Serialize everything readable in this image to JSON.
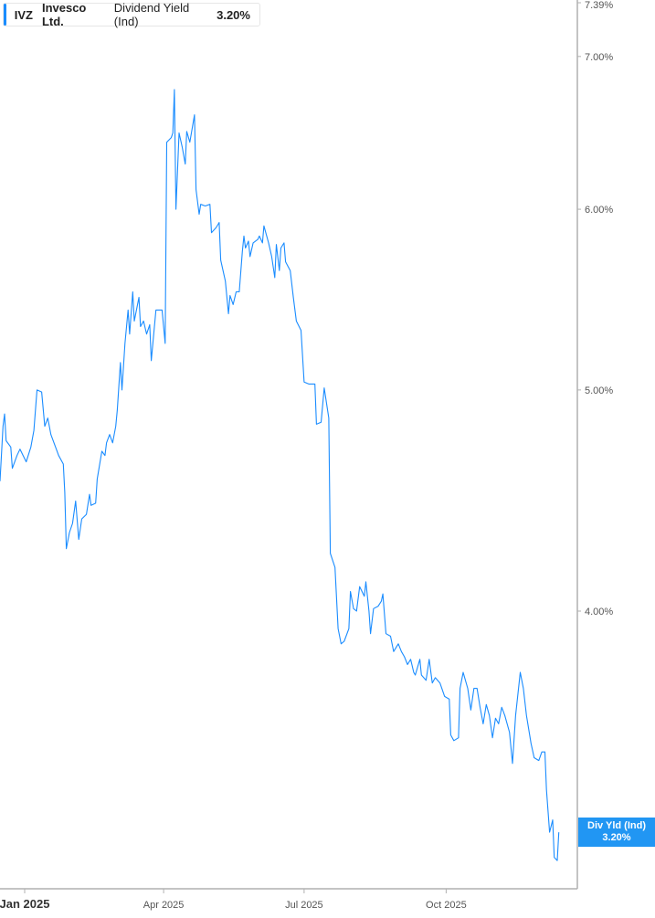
{
  "legend": {
    "ticker": "IVZ",
    "company": "Invesco Ltd.",
    "metric": "Dividend Yield (Ind)",
    "value": "3.20%"
  },
  "badge": {
    "label": "Div Yld (Ind)",
    "value": "3.20%"
  },
  "colors": {
    "line": "#1a8cff",
    "badge": "#2196f3",
    "axis": "#b0b0b0",
    "text": "#555555"
  },
  "chart_data": {
    "type": "line",
    "yscale": "log",
    "ylim": [
      3.0,
      7.39
    ],
    "y_ticks": [
      {
        "value": 7.39,
        "label": "7.39%"
      },
      {
        "value": 7.0,
        "label": "7.00%"
      },
      {
        "value": 6.0,
        "label": "6.00%"
      },
      {
        "value": 5.0,
        "label": "5.00%"
      },
      {
        "value": 4.0,
        "label": "4.00%"
      }
    ],
    "x_ticks": [
      {
        "date": "2025-01-01",
        "label": "Jan 2025",
        "major": true
      },
      {
        "date": "2025-04-01",
        "label": "Apr 2025"
      },
      {
        "date": "2025-07-01",
        "label": "Jul 2025"
      },
      {
        "date": "2025-10-01",
        "label": "Oct 2025"
      }
    ],
    "grid": false,
    "series": [
      {
        "name": "Dividend Yield (Ind)",
        "points": [
          [
            "2024-12-16",
            4.56
          ],
          [
            "2024-12-18",
            4.82
          ],
          [
            "2024-12-19",
            4.88
          ],
          [
            "2024-12-20",
            4.75
          ],
          [
            "2024-12-23",
            4.72
          ],
          [
            "2024-12-24",
            4.62
          ],
          [
            "2024-12-27",
            4.68
          ],
          [
            "2024-12-29",
            4.71
          ],
          [
            "2024-12-31",
            4.68
          ],
          [
            "2025-01-02",
            4.65
          ],
          [
            "2025-01-05",
            4.72
          ],
          [
            "2025-01-07",
            4.8
          ],
          [
            "2025-01-09",
            5.0
          ],
          [
            "2025-01-12",
            4.99
          ],
          [
            "2025-01-14",
            4.82
          ],
          [
            "2025-01-16",
            4.86
          ],
          [
            "2025-01-18",
            4.78
          ],
          [
            "2025-01-21",
            4.72
          ],
          [
            "2025-01-23",
            4.68
          ],
          [
            "2025-01-26",
            4.64
          ],
          [
            "2025-01-27",
            4.51
          ],
          [
            "2025-01-28",
            4.26
          ],
          [
            "2025-01-30",
            4.33
          ],
          [
            "2025-02-01",
            4.37
          ],
          [
            "2025-02-03",
            4.47
          ],
          [
            "2025-02-05",
            4.3
          ],
          [
            "2025-02-07",
            4.39
          ],
          [
            "2025-02-10",
            4.41
          ],
          [
            "2025-02-12",
            4.5
          ],
          [
            "2025-02-13",
            4.45
          ],
          [
            "2025-02-16",
            4.46
          ],
          [
            "2025-02-17",
            4.57
          ],
          [
            "2025-02-20",
            4.7
          ],
          [
            "2025-02-22",
            4.68
          ],
          [
            "2025-02-23",
            4.74
          ],
          [
            "2025-02-25",
            4.78
          ],
          [
            "2025-02-27",
            4.74
          ],
          [
            "2025-03-01",
            4.82
          ],
          [
            "2025-03-02",
            4.9
          ],
          [
            "2025-03-04",
            5.14
          ],
          [
            "2025-03-05",
            5.0
          ],
          [
            "2025-03-07",
            5.24
          ],
          [
            "2025-03-09",
            5.42
          ],
          [
            "2025-03-10",
            5.29
          ],
          [
            "2025-03-12",
            5.52
          ],
          [
            "2025-03-13",
            5.36
          ],
          [
            "2025-03-16",
            5.49
          ],
          [
            "2025-03-17",
            5.33
          ],
          [
            "2025-03-19",
            5.36
          ],
          [
            "2025-03-21",
            5.29
          ],
          [
            "2025-03-23",
            5.34
          ],
          [
            "2025-03-24",
            5.15
          ],
          [
            "2025-03-27",
            5.42
          ],
          [
            "2025-03-31",
            5.42
          ],
          [
            "2025-04-02",
            5.24
          ],
          [
            "2025-04-03",
            6.42
          ],
          [
            "2025-04-06",
            6.45
          ],
          [
            "2025-04-07",
            6.48
          ],
          [
            "2025-04-08",
            6.77
          ],
          [
            "2025-04-09",
            6.0
          ],
          [
            "2025-04-11",
            6.48
          ],
          [
            "2025-04-13",
            6.39
          ],
          [
            "2025-04-15",
            6.28
          ],
          [
            "2025-04-16",
            6.49
          ],
          [
            "2025-04-18",
            6.42
          ],
          [
            "2025-04-21",
            6.6
          ],
          [
            "2025-04-22",
            6.12
          ],
          [
            "2025-04-24",
            5.97
          ],
          [
            "2025-04-25",
            6.03
          ],
          [
            "2025-04-28",
            6.02
          ],
          [
            "2025-05-01",
            6.03
          ],
          [
            "2025-05-02",
            5.86
          ],
          [
            "2025-05-05",
            5.89
          ],
          [
            "2025-05-07",
            5.92
          ],
          [
            "2025-05-08",
            5.7
          ],
          [
            "2025-05-11",
            5.58
          ],
          [
            "2025-05-13",
            5.4
          ],
          [
            "2025-05-14",
            5.5
          ],
          [
            "2025-05-16",
            5.45
          ],
          [
            "2025-05-18",
            5.52
          ],
          [
            "2025-05-20",
            5.52
          ],
          [
            "2025-05-22",
            5.75
          ],
          [
            "2025-05-23",
            5.84
          ],
          [
            "2025-05-24",
            5.77
          ],
          [
            "2025-05-26",
            5.81
          ],
          [
            "2025-05-27",
            5.72
          ],
          [
            "2025-05-29",
            5.8
          ],
          [
            "2025-06-01",
            5.82
          ],
          [
            "2025-06-02",
            5.84
          ],
          [
            "2025-06-04",
            5.8
          ],
          [
            "2025-06-05",
            5.9
          ],
          [
            "2025-06-08",
            5.8
          ],
          [
            "2025-06-10",
            5.72
          ],
          [
            "2025-06-12",
            5.6
          ],
          [
            "2025-06-13",
            5.79
          ],
          [
            "2025-06-15",
            5.64
          ],
          [
            "2025-06-16",
            5.77
          ],
          [
            "2025-06-18",
            5.8
          ],
          [
            "2025-06-19",
            5.69
          ],
          [
            "2025-06-22",
            5.64
          ],
          [
            "2025-06-24",
            5.49
          ],
          [
            "2025-06-26",
            5.36
          ],
          [
            "2025-06-29",
            5.31
          ],
          [
            "2025-07-01",
            5.04
          ],
          [
            "2025-07-04",
            5.03
          ],
          [
            "2025-07-08",
            5.03
          ],
          [
            "2025-07-09",
            4.83
          ],
          [
            "2025-07-12",
            4.84
          ],
          [
            "2025-07-14",
            5.01
          ],
          [
            "2025-07-17",
            4.86
          ],
          [
            "2025-07-18",
            4.24
          ],
          [
            "2025-07-21",
            4.18
          ],
          [
            "2025-07-23",
            3.93
          ],
          [
            "2025-07-25",
            3.87
          ],
          [
            "2025-07-27",
            3.88
          ],
          [
            "2025-07-30",
            3.93
          ],
          [
            "2025-07-31",
            4.08
          ],
          [
            "2025-08-02",
            4.01
          ],
          [
            "2025-08-04",
            4.0
          ],
          [
            "2025-08-06",
            4.1
          ],
          [
            "2025-08-09",
            4.06
          ],
          [
            "2025-08-10",
            4.12
          ],
          [
            "2025-08-12",
            4.0
          ],
          [
            "2025-08-13",
            3.91
          ],
          [
            "2025-08-15",
            4.01
          ],
          [
            "2025-08-18",
            4.02
          ],
          [
            "2025-08-20",
            4.04
          ],
          [
            "2025-08-21",
            4.07
          ],
          [
            "2025-08-23",
            3.91
          ],
          [
            "2025-08-26",
            3.9
          ],
          [
            "2025-08-28",
            3.84
          ],
          [
            "2025-08-31",
            3.87
          ],
          [
            "2025-09-02",
            3.84
          ],
          [
            "2025-09-04",
            3.82
          ],
          [
            "2025-09-06",
            3.79
          ],
          [
            "2025-09-08",
            3.81
          ],
          [
            "2025-09-10",
            3.76
          ],
          [
            "2025-09-11",
            3.75
          ],
          [
            "2025-09-14",
            3.81
          ],
          [
            "2025-09-15",
            3.75
          ],
          [
            "2025-09-18",
            3.73
          ],
          [
            "2025-09-20",
            3.81
          ],
          [
            "2025-09-22",
            3.72
          ],
          [
            "2025-09-24",
            3.74
          ],
          [
            "2025-09-27",
            3.72
          ],
          [
            "2025-09-30",
            3.67
          ],
          [
            "2025-10-03",
            3.66
          ],
          [
            "2025-10-04",
            3.53
          ],
          [
            "2025-10-06",
            3.51
          ],
          [
            "2025-10-09",
            3.52
          ],
          [
            "2025-10-10",
            3.7
          ],
          [
            "2025-10-12",
            3.76
          ],
          [
            "2025-10-15",
            3.7
          ],
          [
            "2025-10-17",
            3.62
          ],
          [
            "2025-10-19",
            3.7
          ],
          [
            "2025-10-21",
            3.7
          ],
          [
            "2025-10-23",
            3.63
          ],
          [
            "2025-10-25",
            3.57
          ],
          [
            "2025-10-27",
            3.64
          ],
          [
            "2025-10-29",
            3.6
          ],
          [
            "2025-10-31",
            3.52
          ],
          [
            "2025-11-02",
            3.59
          ],
          [
            "2025-11-04",
            3.57
          ],
          [
            "2025-11-06",
            3.63
          ],
          [
            "2025-11-08",
            3.6
          ],
          [
            "2025-11-11",
            3.54
          ],
          [
            "2025-11-13",
            3.43
          ],
          [
            "2025-11-15",
            3.6
          ],
          [
            "2025-11-18",
            3.76
          ],
          [
            "2025-11-20",
            3.7
          ],
          [
            "2025-11-22",
            3.6
          ],
          [
            "2025-11-25",
            3.5
          ],
          [
            "2025-11-27",
            3.45
          ],
          [
            "2025-11-30",
            3.44
          ],
          [
            "2025-12-02",
            3.47
          ],
          [
            "2025-12-04",
            3.47
          ],
          [
            "2025-12-05",
            3.34
          ],
          [
            "2025-12-07",
            3.2
          ],
          [
            "2025-12-09",
            3.24
          ],
          [
            "2025-12-10",
            3.12
          ],
          [
            "2025-12-12",
            3.11
          ],
          [
            "2025-12-13",
            3.2
          ]
        ]
      }
    ]
  }
}
